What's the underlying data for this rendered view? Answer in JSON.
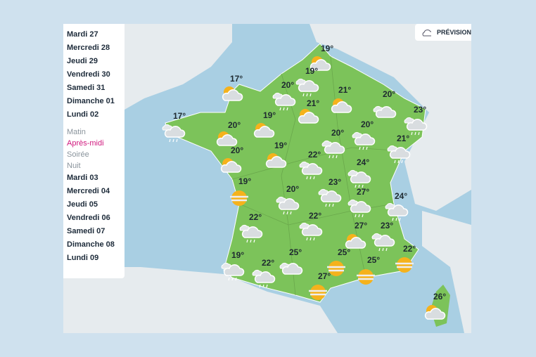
{
  "sidebar": {
    "days_before": [
      "Mardi 27",
      "Mercredi 28",
      "Jeudi 29",
      "Vendredi 30",
      "Samedi 31",
      "Dimanche 01",
      "Lundi 02"
    ],
    "periods": [
      "Matin",
      "Après-midi",
      "Soirée",
      "Nuit"
    ],
    "selected_period": "Après-midi",
    "days_after": [
      "Mardi 03",
      "Mercredi 04",
      "Jeudi 05",
      "Vendredi 06",
      "Samedi 07",
      "Dimanche 08",
      "Lundi 09"
    ]
  },
  "forecast_button": {
    "label": "PRÉVISION",
    "icon": "cloud-icon"
  },
  "colors": {
    "selected": "#d0187e",
    "land": "#7cc35a",
    "sea": "#a9cfe3"
  },
  "markers": [
    {
      "temp": "19°",
      "icon": "sun-cloud"
    },
    {
      "temp": "19°",
      "icon": "cloud-rain"
    },
    {
      "temp": "20°",
      "icon": "cloud-rain"
    },
    {
      "temp": "21°",
      "icon": "sun-cloud"
    },
    {
      "temp": "20°",
      "icon": "cloud"
    },
    {
      "temp": "17°",
      "icon": "sun-cloud"
    },
    {
      "temp": "17°",
      "icon": "cloud-rain"
    },
    {
      "temp": "19°",
      "icon": "sun-cloud"
    },
    {
      "temp": "21°",
      "icon": "sun-cloud"
    },
    {
      "temp": "23°",
      "icon": "cloud-rain"
    },
    {
      "temp": "20°",
      "icon": "sun-cloud"
    },
    {
      "temp": "20°",
      "icon": "cloud-rain"
    },
    {
      "temp": "20°",
      "icon": "cloud-rain"
    },
    {
      "temp": "21°",
      "icon": "cloud-rain"
    },
    {
      "temp": "20°",
      "icon": "sun-cloud"
    },
    {
      "temp": "19°",
      "icon": "sun-cloud"
    },
    {
      "temp": "22°",
      "icon": "cloud-rain"
    },
    {
      "temp": "24°",
      "icon": "cloud-rain"
    },
    {
      "temp": "19°",
      "icon": "fog-sun"
    },
    {
      "temp": "23°",
      "icon": "cloud-rain"
    },
    {
      "temp": "20°",
      "icon": "cloud-rain"
    },
    {
      "temp": "27°",
      "icon": "cloud-rain"
    },
    {
      "temp": "24°",
      "icon": "cloud-rain"
    },
    {
      "temp": "22°",
      "icon": "cloud-rain"
    },
    {
      "temp": "22°",
      "icon": "cloud-rain"
    },
    {
      "temp": "27°",
      "icon": "sun-cloud"
    },
    {
      "temp": "23°",
      "icon": "cloud-rain"
    },
    {
      "temp": "19°",
      "icon": "cloud-rain"
    },
    {
      "temp": "25°",
      "icon": "cloud"
    },
    {
      "temp": "25°",
      "icon": "fog-sun"
    },
    {
      "temp": "22°",
      "icon": "fog-sun"
    },
    {
      "temp": "22°",
      "icon": "cloud-rain"
    },
    {
      "temp": "25°",
      "icon": "fog-sun"
    },
    {
      "temp": "27°",
      "icon": "fog-sun"
    },
    {
      "temp": "26°",
      "icon": "sun-cloud"
    }
  ]
}
